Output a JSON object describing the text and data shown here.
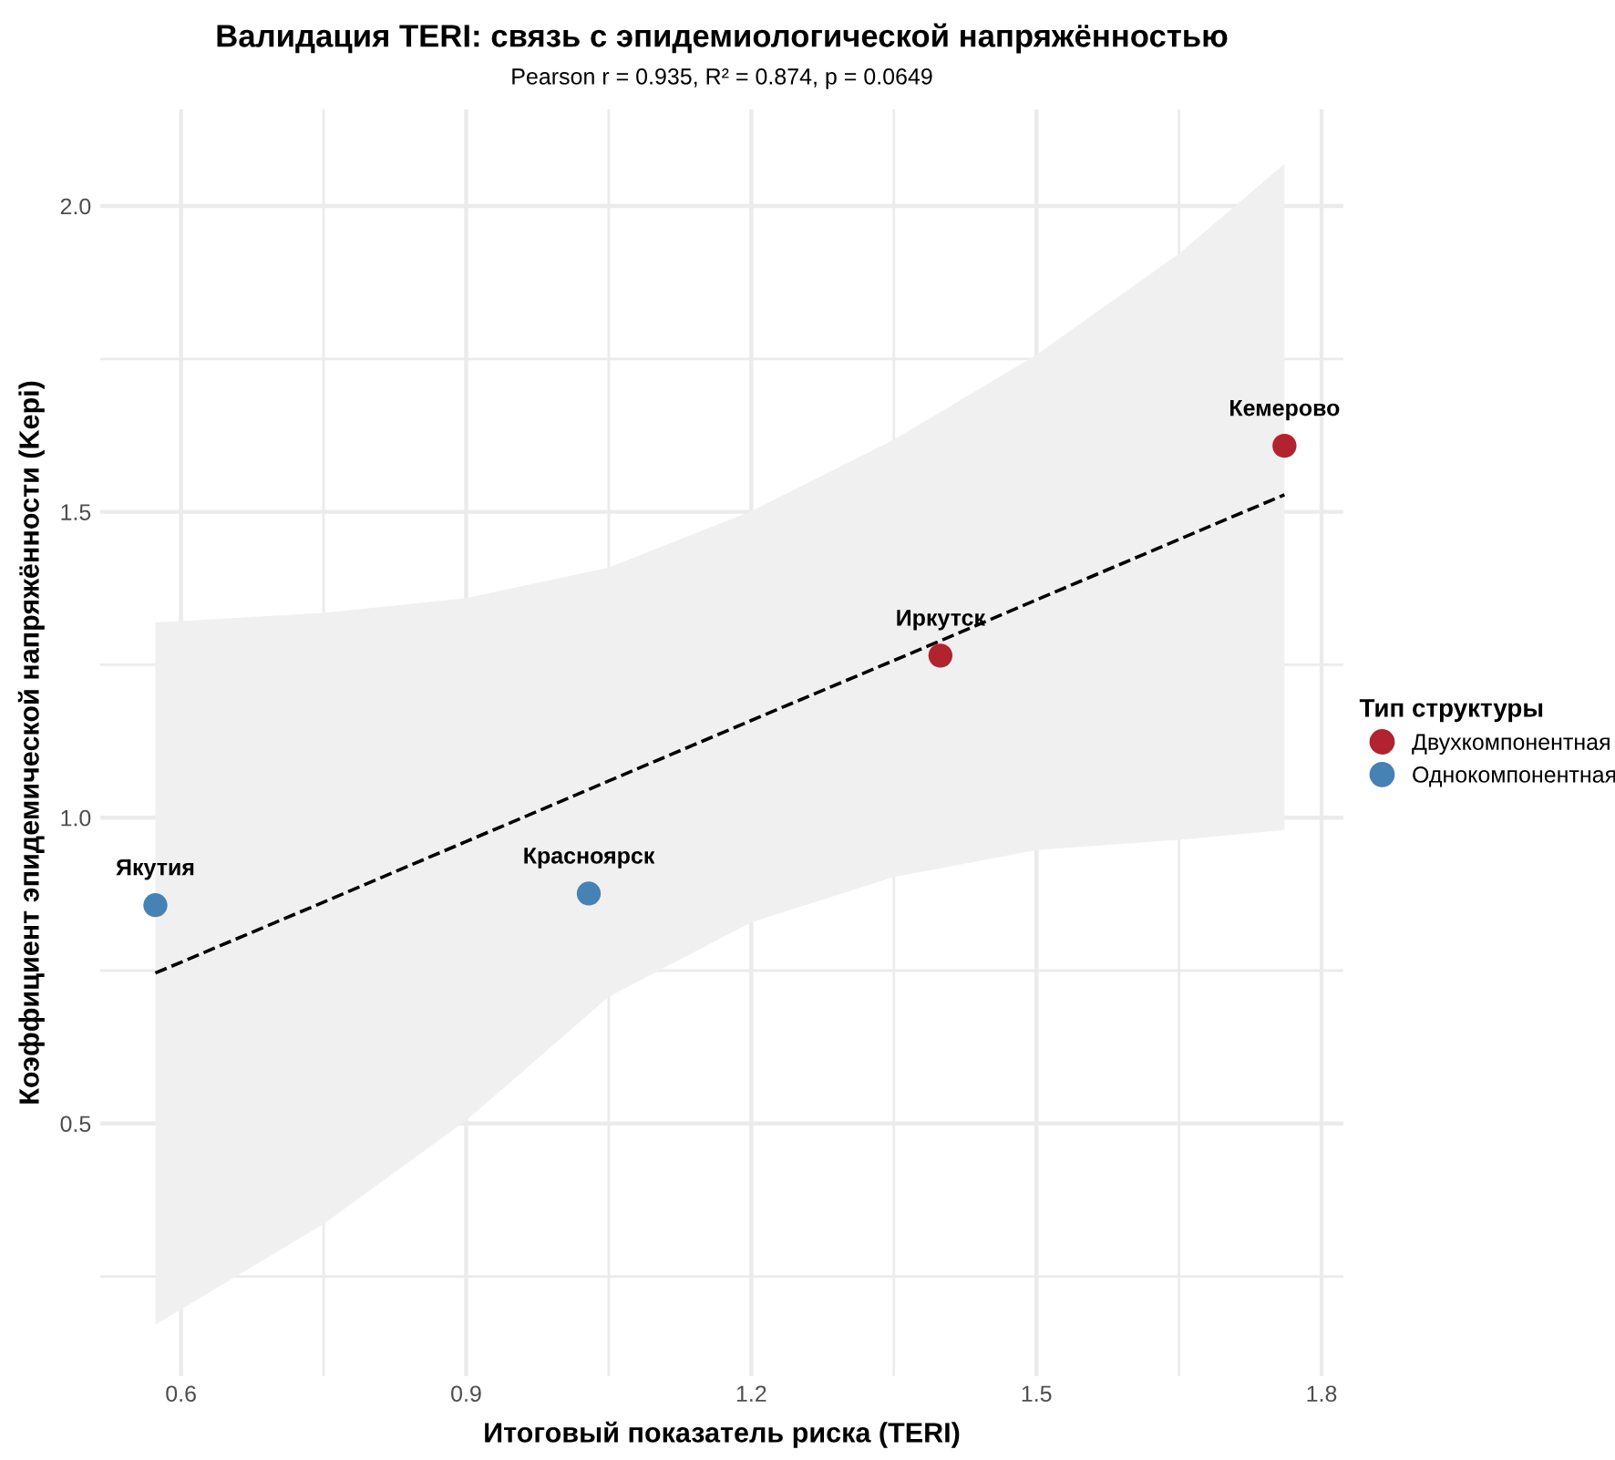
{
  "chart_data": {
    "type": "scatter",
    "title": "Валидация TERI: связь с эпидемиологической напряжённостью",
    "subtitle": "Pearson r = 0.935, R² = 0.874, p = 0.0649",
    "xlabel": "Итоговый показатель риска (TERI)",
    "ylabel": "Коэффициент эпидемической напряжённости (Kepi)",
    "legend_title": "Тип структуры",
    "series": [
      {
        "name": "Двухкомпонентная",
        "color": "#b2222f",
        "x": [
          1.399,
          1.761
        ],
        "values": [
          1.265,
          1.608
        ]
      },
      {
        "name": "Однокомпонентная",
        "color": "#4682b4",
        "x": [
          0.573,
          1.029
        ],
        "values": [
          0.857,
          0.876
        ]
      },
      {
        "type": "line",
        "color": "#000000",
        "line_style": "dashed",
        "marker": "none",
        "x": [
          0.573,
          0.75,
          0.9,
          1.05,
          1.2,
          1.35,
          1.5,
          1.65,
          1.761
        ],
        "values": [
          0.746,
          0.862,
          0.961,
          1.06,
          1.159,
          1.257,
          1.356,
          1.455,
          1.528
        ],
        "lower": [
          0.171,
          0.336,
          0.505,
          0.707,
          0.829,
          0.903,
          0.947,
          0.964,
          0.98
        ],
        "upper": [
          1.319,
          1.335,
          1.359,
          1.409,
          1.501,
          1.618,
          1.757,
          1.922,
          2.069
        ]
      }
    ],
    "annotations": [
      {
        "text": "Якутия",
        "x": 0.573,
        "y": 0.857
      },
      {
        "text": "Красноярск",
        "x": 1.029,
        "y": 0.876
      },
      {
        "text": "Иркутск",
        "x": 1.399,
        "y": 1.265
      },
      {
        "text": "Кемерово",
        "x": 1.761,
        "y": 1.608
      }
    ],
    "marker": "circle",
    "grid": true,
    "legend": "right",
    "xlim": [
      0.515,
      1.823
    ],
    "ylim": [
      0.087,
      2.158
    ],
    "xticks": [
      0.6,
      {
        "value": 0.75,
        "label": null
      },
      0.9,
      {
        "value": 1.05,
        "label": null
      },
      1.2,
      {
        "value": 1.35,
        "label": null
      },
      1.5,
      {
        "value": 1.65,
        "label": null
      },
      1.8
    ],
    "yticks": [
      {
        "value": 0.25,
        "label": null
      },
      0.5,
      {
        "value": 0.75,
        "label": null
      },
      {
        "value": 1.0,
        "label": "1.0"
      },
      {
        "value": 1.25,
        "label": null
      },
      1.5,
      {
        "value": 1.75,
        "label": null
      },
      {
        "value": 2.0,
        "label": "2.0"
      }
    ]
  }
}
